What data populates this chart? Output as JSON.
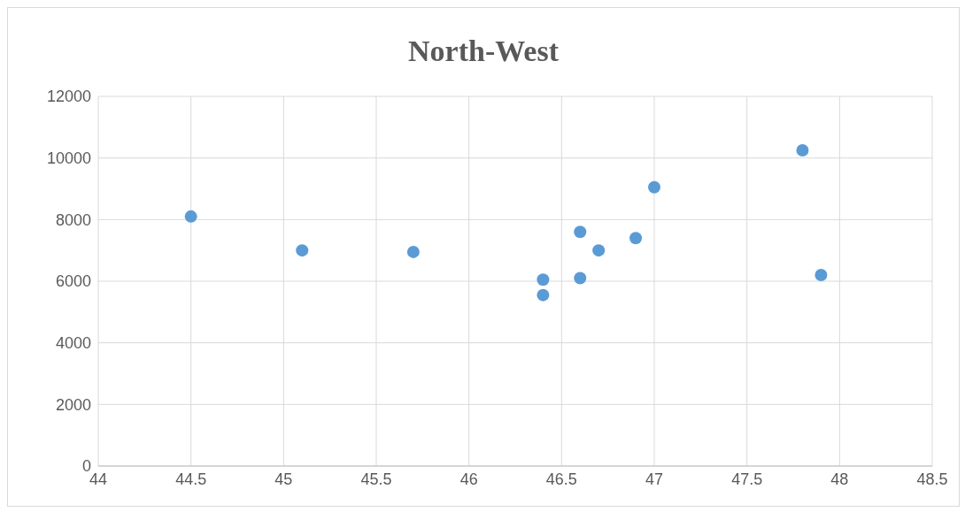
{
  "chart_data": {
    "type": "scatter",
    "title": "North-West",
    "x": [
      44.5,
      45.1,
      45.7,
      46.4,
      46.4,
      46.6,
      46.6,
      46.7,
      46.9,
      47.0,
      47.8,
      47.9
    ],
    "values": [
      8100,
      7000,
      6950,
      6050,
      5550,
      7600,
      6100,
      7000,
      7400,
      9050,
      10250,
      6200
    ],
    "color": "#5b9bd5",
    "marker": "circle",
    "xlim": [
      44,
      48.5
    ],
    "xticks": [
      44,
      44.5,
      45,
      45.5,
      46,
      46.5,
      47,
      47.5,
      48,
      48.5
    ],
    "ylim": [
      0,
      12000
    ],
    "yticks": [
      0,
      2000,
      4000,
      6000,
      8000,
      10000,
      12000
    ],
    "grid": true
  }
}
